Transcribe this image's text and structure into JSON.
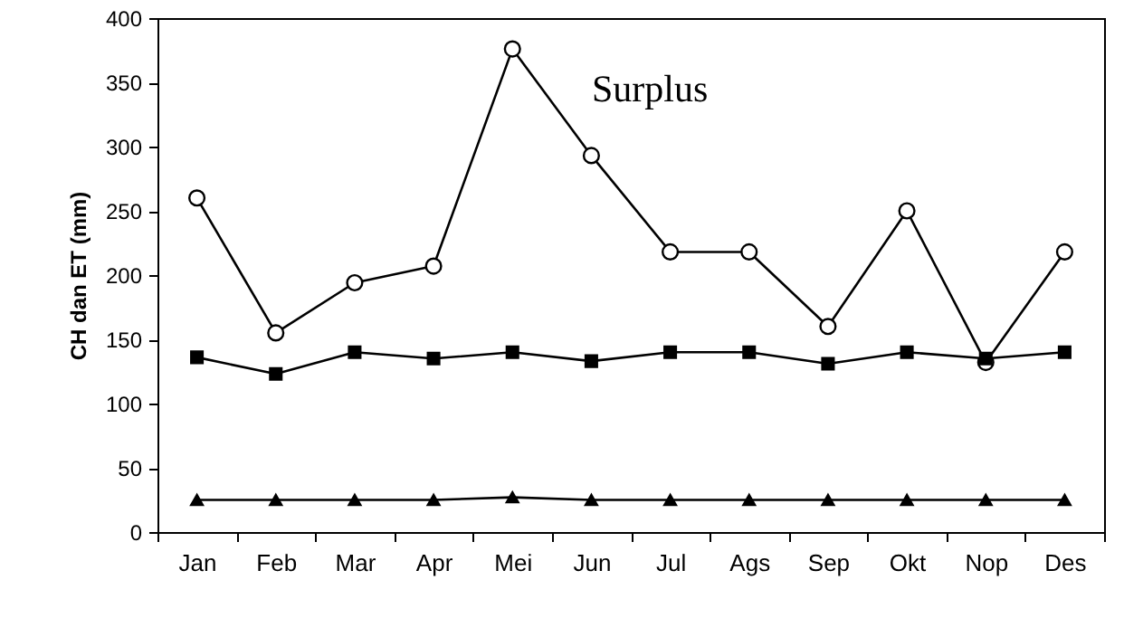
{
  "chart_data": {
    "type": "line",
    "ylabel": "CH dan ET (mm)",
    "categories": [
      "Jan",
      "Feb",
      "Mar",
      "Apr",
      "Mei",
      "Jun",
      "Jul",
      "Ags",
      "Sep",
      "Okt",
      "Nop",
      "Des"
    ],
    "series": [
      {
        "color": "#000000",
        "marker": "circle",
        "values": [
          260,
          155,
          194,
          207,
          376,
          293,
          218,
          218,
          160,
          250,
          132,
          218
        ]
      },
      {
        "color": "#000000",
        "marker": "square",
        "values": [
          136,
          123,
          140,
          135,
          140,
          133,
          140,
          140,
          131,
          140,
          135,
          140
        ]
      },
      {
        "color": "#000000",
        "marker": "triangle",
        "values": [
          25,
          25,
          25,
          25,
          27,
          25,
          25,
          25,
          25,
          25,
          25,
          25
        ]
      }
    ],
    "ylim": [
      0,
      400
    ],
    "yticks": [
      0,
      50,
      100,
      150,
      200,
      250,
      300,
      350,
      400
    ],
    "annotations": [
      "Surplus"
    ],
    "grid": false
  }
}
